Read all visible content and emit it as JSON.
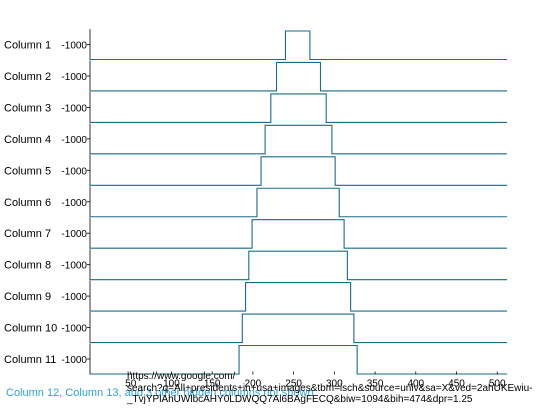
{
  "chart_data": {
    "type": "line",
    "subplots": [
      {
        "row_label": "Column 1",
        "tick_label": "1000",
        "pulse": [
          240,
          270
        ]
      },
      {
        "row_label": "Column 2",
        "tick_label": "1000",
        "pulse": [
          229,
          283
        ]
      },
      {
        "row_label": "Column 3",
        "tick_label": "1000",
        "pulse": [
          222,
          290
        ]
      },
      {
        "row_label": "Column 4",
        "tick_label": "1000",
        "pulse": [
          215,
          297
        ]
      },
      {
        "row_label": "Column 5",
        "tick_label": "1000",
        "pulse": [
          210,
          301
        ]
      },
      {
        "row_label": "Column 6",
        "tick_label": "1000",
        "pulse": [
          205,
          306
        ]
      },
      {
        "row_label": "Column 7",
        "tick_label": "1000",
        "pulse": [
          199,
          312
        ]
      },
      {
        "row_label": "Column 8",
        "tick_label": "1000",
        "pulse": [
          195,
          316
        ]
      },
      {
        "row_label": "Column 9",
        "tick_label": "1000",
        "pulse": [
          191,
          320
        ]
      },
      {
        "row_label": "Column 10",
        "tick_label": "1000",
        "pulse": [
          187,
          324
        ]
      },
      {
        "row_label": "Column 11",
        "tick_label": "1000",
        "pulse": [
          183,
          328
        ]
      }
    ],
    "x_ticks": [
      50,
      100,
      150,
      200,
      250,
      300,
      350,
      400,
      450,
      500
    ],
    "xlim": [
      0,
      512
    ],
    "ylim": [
      0,
      1000
    ],
    "line_color": "#1a6b8a",
    "hidden_note": "Column 12, Column 13, and 3 other hidden columns not shown"
  },
  "url_overlay": {
    "lines": [
      "https://www.google.com/",
      "search?q=All+presidents+in+usa+images&tbm=isch&source=univ&sa=X&ved=2ahUKEwiu-",
      "_TvjYPlAhUWlbcAHY0LDWQQ7Al6BAgFECQ&biw=1094&bih=474&dpr=1.25"
    ]
  }
}
